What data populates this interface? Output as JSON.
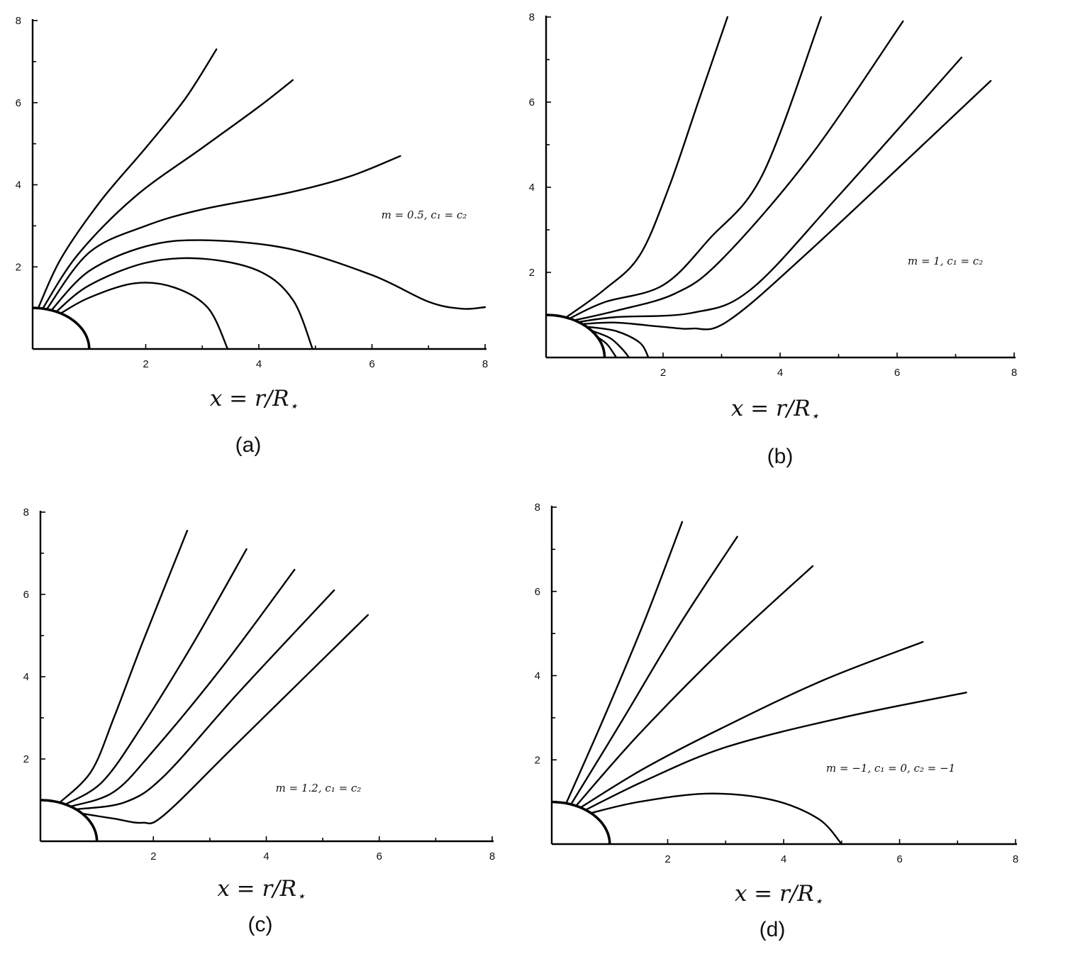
{
  "chart_data": [
    {
      "type": "line",
      "panel_label": "(a)",
      "xlabel": "x = r/R",
      "xlabel_sub": "⋆",
      "annotation": "m = 0.5, c₁ = c₂",
      "xlim": [
        0,
        8
      ],
      "ylim": [
        0,
        8
      ],
      "x_ticks": [
        "2",
        "4",
        "6",
        "8"
      ],
      "y_ticks": [
        "2",
        "4",
        "6",
        "8"
      ],
      "star_radius": 1,
      "series": [
        {
          "points": [
            [
              0.1,
              1.0
            ],
            [
              0.5,
              2.2
            ],
            [
              1.2,
              3.6
            ],
            [
              2.0,
              4.9
            ],
            [
              2.7,
              6.1
            ],
            [
              3.25,
              7.3
            ]
          ]
        },
        {
          "points": [
            [
              0.18,
              0.99
            ],
            [
              0.8,
              2.3
            ],
            [
              1.8,
              3.7
            ],
            [
              3.0,
              4.9
            ],
            [
              4.0,
              5.9
            ],
            [
              4.6,
              6.55
            ]
          ]
        },
        {
          "points": [
            [
              0.25,
              0.97
            ],
            [
              1.0,
              2.35
            ],
            [
              2.0,
              3.0
            ],
            [
              3.0,
              3.4
            ],
            [
              4.5,
              3.8
            ],
            [
              5.6,
              4.2
            ],
            [
              6.5,
              4.7
            ]
          ]
        },
        {
          "points": [
            [
              0.33,
              0.94
            ],
            [
              1.0,
              1.9
            ],
            [
              2.0,
              2.5
            ],
            [
              3.0,
              2.65
            ],
            [
              4.5,
              2.45
            ],
            [
              6.0,
              1.8
            ],
            [
              7.0,
              1.15
            ],
            [
              7.6,
              0.98
            ],
            [
              8.0,
              1.02
            ]
          ]
        },
        {
          "points": [
            [
              0.42,
              0.91
            ],
            [
              1.0,
              1.55
            ],
            [
              2.0,
              2.1
            ],
            [
              3.0,
              2.2
            ],
            [
              4.0,
              1.9
            ],
            [
              4.6,
              1.2
            ],
            [
              4.95,
              0.0
            ]
          ]
        },
        {
          "points": [
            [
              0.5,
              0.87
            ],
            [
              1.0,
              1.25
            ],
            [
              1.8,
              1.6
            ],
            [
              2.5,
              1.5
            ],
            [
              3.1,
              1.0
            ],
            [
              3.45,
              0.0
            ]
          ]
        }
      ]
    },
    {
      "type": "line",
      "panel_label": "(b)",
      "xlabel": "x = r/R",
      "xlabel_sub": "⋆",
      "annotation": "m = 1, c₁ = c₂",
      "xlim": [
        0,
        8
      ],
      "ylim": [
        0,
        8
      ],
      "x_ticks": [
        "2",
        "4",
        "6",
        "8"
      ],
      "y_ticks": [
        "2",
        "4",
        "6",
        "8"
      ],
      "star_radius": 1,
      "series": [
        {
          "points": [
            [
              0.35,
              0.95
            ],
            [
              1.0,
              1.6
            ],
            [
              1.6,
              2.4
            ],
            [
              2.1,
              4.0
            ],
            [
              2.6,
              6.0
            ],
            [
              3.1,
              8.0
            ]
          ]
        },
        {
          "points": [
            [
              0.42,
              0.93
            ],
            [
              1.0,
              1.3
            ],
            [
              2.0,
              1.7
            ],
            [
              2.8,
              2.8
            ],
            [
              3.7,
              4.3
            ],
            [
              4.7,
              8.0
            ]
          ]
        },
        {
          "points": [
            [
              0.5,
              0.88
            ],
            [
              1.2,
              1.1
            ],
            [
              2.2,
              1.5
            ],
            [
              3.0,
              2.3
            ],
            [
              4.5,
              4.7
            ],
            [
              6.1,
              7.9
            ]
          ]
        },
        {
          "points": [
            [
              0.58,
              0.84
            ],
            [
              1.2,
              0.95
            ],
            [
              2.5,
              1.05
            ],
            [
              3.5,
              1.6
            ],
            [
              5.0,
              3.8
            ],
            [
              7.1,
              7.05
            ]
          ]
        },
        {
          "points": [
            [
              0.65,
              0.79
            ],
            [
              1.2,
              0.82
            ],
            [
              2.0,
              0.72
            ],
            [
              2.5,
              0.68
            ],
            [
              3.1,
              0.85
            ],
            [
              4.5,
              2.5
            ],
            [
              7.6,
              6.5
            ]
          ]
        },
        {
          "points": [
            [
              0.72,
              0.72
            ],
            [
              1.2,
              0.62
            ],
            [
              1.6,
              0.35
            ],
            [
              1.75,
              0.0
            ]
          ]
        },
        {
          "points": [
            [
              0.8,
              0.62
            ],
            [
              1.1,
              0.45
            ],
            [
              1.3,
              0.2
            ],
            [
              1.42,
              0.0
            ]
          ]
        },
        {
          "points": [
            [
              0.88,
              0.48
            ],
            [
              1.05,
              0.3
            ],
            [
              1.2,
              0.0
            ]
          ]
        }
      ]
    },
    {
      "type": "line",
      "panel_label": "(c)",
      "xlabel": "x = r/R",
      "xlabel_sub": "⋆",
      "annotation": "m = 1.2, c₁ = c₂",
      "xlim": [
        0,
        8
      ],
      "ylim": [
        0,
        8
      ],
      "x_ticks": [
        "2",
        "4",
        "6",
        "8"
      ],
      "y_ticks": [
        "2",
        "4",
        "6",
        "8"
      ],
      "star_radius": 1,
      "series": [
        {
          "points": [
            [
              0.35,
              0.95
            ],
            [
              0.9,
              1.7
            ],
            [
              1.3,
              3.0
            ],
            [
              1.8,
              4.8
            ],
            [
              2.6,
              7.55
            ]
          ]
        },
        {
          "points": [
            [
              0.45,
              0.9
            ],
            [
              1.1,
              1.45
            ],
            [
              1.8,
              2.8
            ],
            [
              2.7,
              4.8
            ],
            [
              3.65,
              7.1
            ]
          ]
        },
        {
          "points": [
            [
              0.55,
              0.85
            ],
            [
              1.3,
              1.2
            ],
            [
              2.0,
              2.2
            ],
            [
              3.2,
              4.2
            ],
            [
              4.5,
              6.6
            ]
          ]
        },
        {
          "points": [
            [
              0.65,
              0.78
            ],
            [
              1.5,
              0.95
            ],
            [
              2.2,
              1.6
            ],
            [
              3.5,
              3.6
            ],
            [
              5.2,
              6.1
            ]
          ]
        },
        {
          "points": [
            [
              0.75,
              0.67
            ],
            [
              1.3,
              0.55
            ],
            [
              1.8,
              0.45
            ],
            [
              2.2,
              0.65
            ],
            [
              3.5,
              2.4
            ],
            [
              5.8,
              5.5
            ]
          ]
        }
      ]
    },
    {
      "type": "line",
      "panel_label": "(d)",
      "xlabel": "x = r/R",
      "xlabel_sub": "⋆",
      "annotation": "m = −1, c₁ = 0, c₂ = −1",
      "xlim": [
        0,
        8
      ],
      "ylim": [
        0,
        8
      ],
      "x_ticks": [
        "2",
        "4",
        "6",
        "8"
      ],
      "y_ticks": [
        "2",
        "4",
        "6",
        "8"
      ],
      "star_radius": 1,
      "series": [
        {
          "points": [
            [
              0.25,
              0.97
            ],
            [
              0.9,
              3.0
            ],
            [
              1.6,
              5.3
            ],
            [
              2.25,
              7.65
            ]
          ]
        },
        {
          "points": [
            [
              0.33,
              0.94
            ],
            [
              1.2,
              2.9
            ],
            [
              2.2,
              5.2
            ],
            [
              3.2,
              7.3
            ]
          ]
        },
        {
          "points": [
            [
              0.42,
              0.91
            ],
            [
              1.5,
              2.6
            ],
            [
              3.0,
              4.7
            ],
            [
              4.5,
              6.6
            ]
          ]
        },
        {
          "points": [
            [
              0.5,
              0.87
            ],
            [
              1.6,
              1.8
            ],
            [
              3.0,
              2.8
            ],
            [
              4.7,
              3.9
            ],
            [
              6.4,
              4.8
            ]
          ]
        },
        {
          "points": [
            [
              0.58,
              0.81
            ],
            [
              1.6,
              1.5
            ],
            [
              3.0,
              2.3
            ],
            [
              5.0,
              3.0
            ],
            [
              7.15,
              3.6
            ]
          ]
        },
        {
          "points": [
            [
              0.68,
              0.74
            ],
            [
              1.5,
              1.0
            ],
            [
              2.7,
              1.2
            ],
            [
              3.8,
              1.05
            ],
            [
              4.6,
              0.6
            ],
            [
              5.0,
              0.0
            ]
          ]
        }
      ]
    }
  ]
}
